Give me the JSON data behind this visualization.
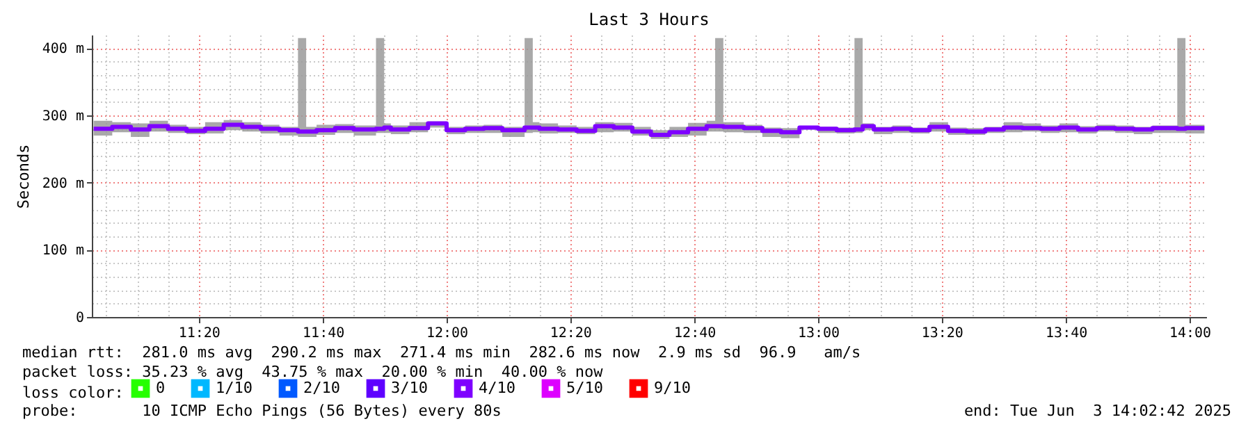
{
  "chart_data": {
    "type": "step",
    "title": "Last 3 Hours",
    "ylabel": "Seconds",
    "legend_title": "loss color:",
    "legend": "bottom",
    "grid": true,
    "x": [
      11.05,
      11.1,
      11.15,
      11.2,
      11.25,
      11.3,
      11.35,
      11.4,
      11.45,
      11.5,
      11.55,
      11.6,
      11.622,
      11.65,
      11.7,
      11.75,
      11.81,
      11.832,
      11.85,
      11.9,
      11.95,
      12.0,
      12.05,
      12.1,
      12.15,
      12.21,
      12.232,
      12.25,
      12.3,
      12.35,
      12.4,
      12.45,
      12.5,
      12.55,
      12.6,
      12.65,
      12.7,
      12.723,
      12.745,
      12.8,
      12.85,
      12.9,
      12.95,
      13.0,
      13.05,
      13.098,
      13.12,
      13.15,
      13.2,
      13.25,
      13.3,
      13.35,
      13.4,
      13.45,
      13.5,
      13.55,
      13.6,
      13.65,
      13.7,
      13.75,
      13.8,
      13.85,
      13.9,
      13.967,
      13.989,
      14.04
    ],
    "xlim": [
      11.045,
      14.045
    ],
    "xticks": [
      {
        "value": 11.083,
        "label": null
      },
      {
        "value": 11.167,
        "label": null
      },
      {
        "value": 11.25,
        "label": null
      },
      {
        "value": 11.333,
        "label": "11:20"
      },
      {
        "value": 11.417,
        "label": null
      },
      {
        "value": 11.5,
        "label": null
      },
      {
        "value": 11.583,
        "label": null
      },
      {
        "value": 11.667,
        "label": "11:40"
      },
      {
        "value": 11.75,
        "label": null
      },
      {
        "value": 11.833,
        "label": null
      },
      {
        "value": 11.917,
        "label": null
      },
      {
        "value": 12,
        "label": "12:00"
      },
      {
        "value": 12.083,
        "label": null
      },
      {
        "value": 12.167,
        "label": null
      },
      {
        "value": 12.25,
        "label": null
      },
      {
        "value": 12.333,
        "label": "12:20"
      },
      {
        "value": 12.417,
        "label": null
      },
      {
        "value": 12.5,
        "label": null
      },
      {
        "value": 12.583,
        "label": null
      },
      {
        "value": 12.667,
        "label": "12:40"
      },
      {
        "value": 12.75,
        "label": null
      },
      {
        "value": 12.833,
        "label": null
      },
      {
        "value": 12.917,
        "label": null
      },
      {
        "value": 13,
        "label": "13:00"
      },
      {
        "value": 13.083,
        "label": null
      },
      {
        "value": 13.167,
        "label": null
      },
      {
        "value": 13.25,
        "label": null
      },
      {
        "value": 13.333,
        "label": "13:20"
      },
      {
        "value": 13.417,
        "label": null
      },
      {
        "value": 13.5,
        "label": null
      },
      {
        "value": 13.583,
        "label": null
      },
      {
        "value": 13.667,
        "label": "13:40"
      },
      {
        "value": 13.75,
        "label": null
      },
      {
        "value": 13.833,
        "label": null
      },
      {
        "value": 13.917,
        "label": null
      },
      {
        "value": 14,
        "label": "14:00"
      }
    ],
    "ylim": [
      0,
      420
    ],
    "yticks": [
      0,
      {
        "value": 20,
        "label": null
      },
      {
        "value": 40,
        "label": null
      },
      {
        "value": 60,
        "label": null
      },
      {
        "value": 80,
        "label": null
      },
      {
        "value": 100,
        "label": "100 m"
      },
      {
        "value": 120,
        "label": null
      },
      {
        "value": 140,
        "label": null
      },
      {
        "value": 160,
        "label": null
      },
      {
        "value": 180,
        "label": null
      },
      {
        "value": 200,
        "label": "200 m"
      },
      {
        "value": 220,
        "label": null
      },
      {
        "value": 240,
        "label": null
      },
      {
        "value": 260,
        "label": null
      },
      {
        "value": 280,
        "label": null
      },
      {
        "value": 300,
        "label": "300 m"
      },
      {
        "value": 320,
        "label": null
      },
      {
        "value": 340,
        "label": null
      },
      {
        "value": 360,
        "label": null
      },
      {
        "value": 380,
        "label": null
      },
      {
        "value": 400,
        "label": "400 m"
      }
    ],
    "series": [
      {
        "name": "0",
        "color": "#26ff00",
        "values": [
          null,
          null,
          null,
          null,
          null,
          null,
          null,
          null,
          null,
          null,
          null,
          null,
          null,
          null,
          null,
          null,
          null,
          null,
          null,
          null,
          null,
          null,
          null,
          null,
          null,
          null,
          null,
          null,
          null,
          null,
          null,
          null,
          null,
          null,
          null,
          null,
          null,
          null,
          null,
          null,
          null,
          null,
          null,
          null,
          null,
          null,
          null,
          null,
          null,
          null,
          null,
          null,
          null,
          null,
          null,
          null,
          null,
          null,
          null,
          null,
          null,
          null,
          null,
          null,
          null,
          null
        ]
      },
      {
        "name": "1/10",
        "color": "#00b8ff",
        "values": [
          null,
          null,
          null,
          null,
          null,
          null,
          null,
          null,
          null,
          null,
          null,
          null,
          null,
          null,
          null,
          null,
          null,
          null,
          null,
          null,
          null,
          null,
          null,
          null,
          null,
          null,
          null,
          null,
          null,
          null,
          null,
          null,
          null,
          null,
          null,
          null,
          null,
          null,
          null,
          null,
          null,
          null,
          null,
          null,
          null,
          null,
          null,
          null,
          null,
          null,
          null,
          null,
          null,
          null,
          null,
          null,
          null,
          null,
          null,
          null,
          null,
          null,
          null,
          null,
          null,
          null
        ]
      },
      {
        "name": "2/10",
        "color": "#0059ff",
        "values": [
          null,
          null,
          null,
          null,
          null,
          null,
          null,
          null,
          null,
          null,
          null,
          null,
          null,
          null,
          null,
          null,
          null,
          null,
          null,
          null,
          null,
          null,
          null,
          null,
          null,
          null,
          null,
          null,
          null,
          null,
          null,
          null,
          null,
          null,
          null,
          null,
          null,
          null,
          null,
          null,
          null,
          null,
          null,
          null,
          null,
          null,
          null,
          null,
          null,
          null,
          null,
          null,
          null,
          null,
          null,
          null,
          null,
          null,
          null,
          null,
          null,
          null,
          null,
          null,
          null,
          null
        ]
      },
      {
        "name": "3/10",
        "color": "#5e00ff",
        "values": [
          null,
          null,
          null,
          null,
          null,
          null,
          null,
          null,
          null,
          null,
          null,
          null,
          null,
          null,
          null,
          null,
          null,
          null,
          null,
          null,
          null,
          null,
          null,
          null,
          null,
          null,
          null,
          null,
          null,
          null,
          null,
          null,
          null,
          null,
          null,
          null,
          null,
          null,
          null,
          null,
          null,
          null,
          null,
          null,
          null,
          null,
          null,
          null,
          null,
          null,
          null,
          null,
          null,
          null,
          null,
          null,
          null,
          null,
          null,
          null,
          null,
          null,
          null,
          null,
          null,
          null
        ]
      },
      {
        "name": "4/10",
        "color": "#7e00ff",
        "values": [
          280,
          283,
          279,
          284,
          280,
          277,
          280,
          286,
          283,
          280,
          278,
          276,
          276,
          278,
          281,
          279,
          280,
          282,
          279,
          281,
          288,
          278,
          280,
          281,
          278,
          282,
          282,
          280,
          279,
          277,
          284,
          282,
          276,
          271,
          275,
          280,
          284,
          284,
          283,
          281,
          277,
          275,
          282,
          280,
          278,
          279,
          284,
          279,
          280,
          278,
          283,
          277,
          276,
          279,
          282,
          281,
          280,
          282,
          279,
          281,
          280,
          279,
          281,
          280,
          281,
          281
        ],
        "lower": [
          270,
          275,
          268,
          276,
          274,
          272,
          273,
          278,
          276,
          273,
          270,
          268,
          268,
          271,
          274,
          270,
          274,
          274,
          272,
          275,
          282,
          272,
          274,
          274,
          268,
          274,
          275,
          273,
          274,
          272,
          275,
          276,
          270,
          265,
          268,
          270,
          276,
          276,
          275,
          274,
          268,
          266,
          279,
          274,
          273,
          274,
          278,
          272,
          274,
          273,
          276,
          271,
          271,
          274,
          275,
          276,
          274,
          275,
          273,
          276,
          274,
          272,
          274,
          274,
          273,
          273
        ],
        "upper": [
          292,
          290,
          288,
          292,
          286,
          283,
          290,
          293,
          290,
          286,
          283,
          415,
          283,
          286,
          287,
          285,
          415,
          288,
          285,
          290,
          291,
          283,
          285,
          286,
          283,
          415,
          290,
          288,
          285,
          283,
          290,
          289,
          283,
          278,
          283,
          289,
          292,
          415,
          290,
          286,
          282,
          281,
          284,
          283,
          282,
          415,
          288,
          283,
          285,
          282,
          290,
          282,
          281,
          283,
          290,
          288,
          285,
          288,
          284,
          286,
          285,
          283,
          285,
          415,
          286,
          286
        ]
      },
      {
        "name": "5/10",
        "color": "#dd00ff",
        "values": [
          null,
          null,
          null,
          null,
          null,
          null,
          null,
          null,
          null,
          null,
          null,
          null,
          null,
          null,
          null,
          null,
          null,
          null,
          null,
          null,
          null,
          null,
          null,
          null,
          null,
          null,
          null,
          null,
          null,
          null,
          null,
          null,
          null,
          null,
          null,
          null,
          null,
          null,
          null,
          null,
          null,
          null,
          null,
          null,
          null,
          null,
          null,
          null,
          null,
          null,
          null,
          null,
          null,
          null,
          null,
          null,
          null,
          null,
          null,
          null,
          null,
          null,
          null,
          null,
          null,
          null
        ]
      },
      {
        "name": "9/10",
        "color": "#ff0000",
        "values": [
          null,
          null,
          null,
          null,
          null,
          null,
          null,
          null,
          null,
          null,
          null,
          null,
          null,
          null,
          null,
          null,
          null,
          null,
          null,
          null,
          null,
          null,
          null,
          null,
          null,
          null,
          null,
          null,
          null,
          null,
          null,
          null,
          null,
          null,
          null,
          null,
          null,
          null,
          null,
          null,
          null,
          null,
          null,
          null,
          null,
          null,
          null,
          null,
          null,
          null,
          null,
          null,
          null,
          null,
          null,
          null,
          null,
          null,
          null,
          null,
          null,
          null,
          null,
          null,
          null,
          null
        ]
      }
    ],
    "annotations": [
      "median rtt:  281.0 ms avg  290.2 ms max  271.4 ms min  282.6 ms now  2.9 ms sd  96.9   am/s",
      "packet loss: 35.23 % avg  43.75 % max  20.00 % min  40.00 % now",
      "probe:       10 ICMP Echo Pings (56 Bytes) every 80s",
      "end: Tue Jun  3 14:02:42 2025"
    ]
  }
}
